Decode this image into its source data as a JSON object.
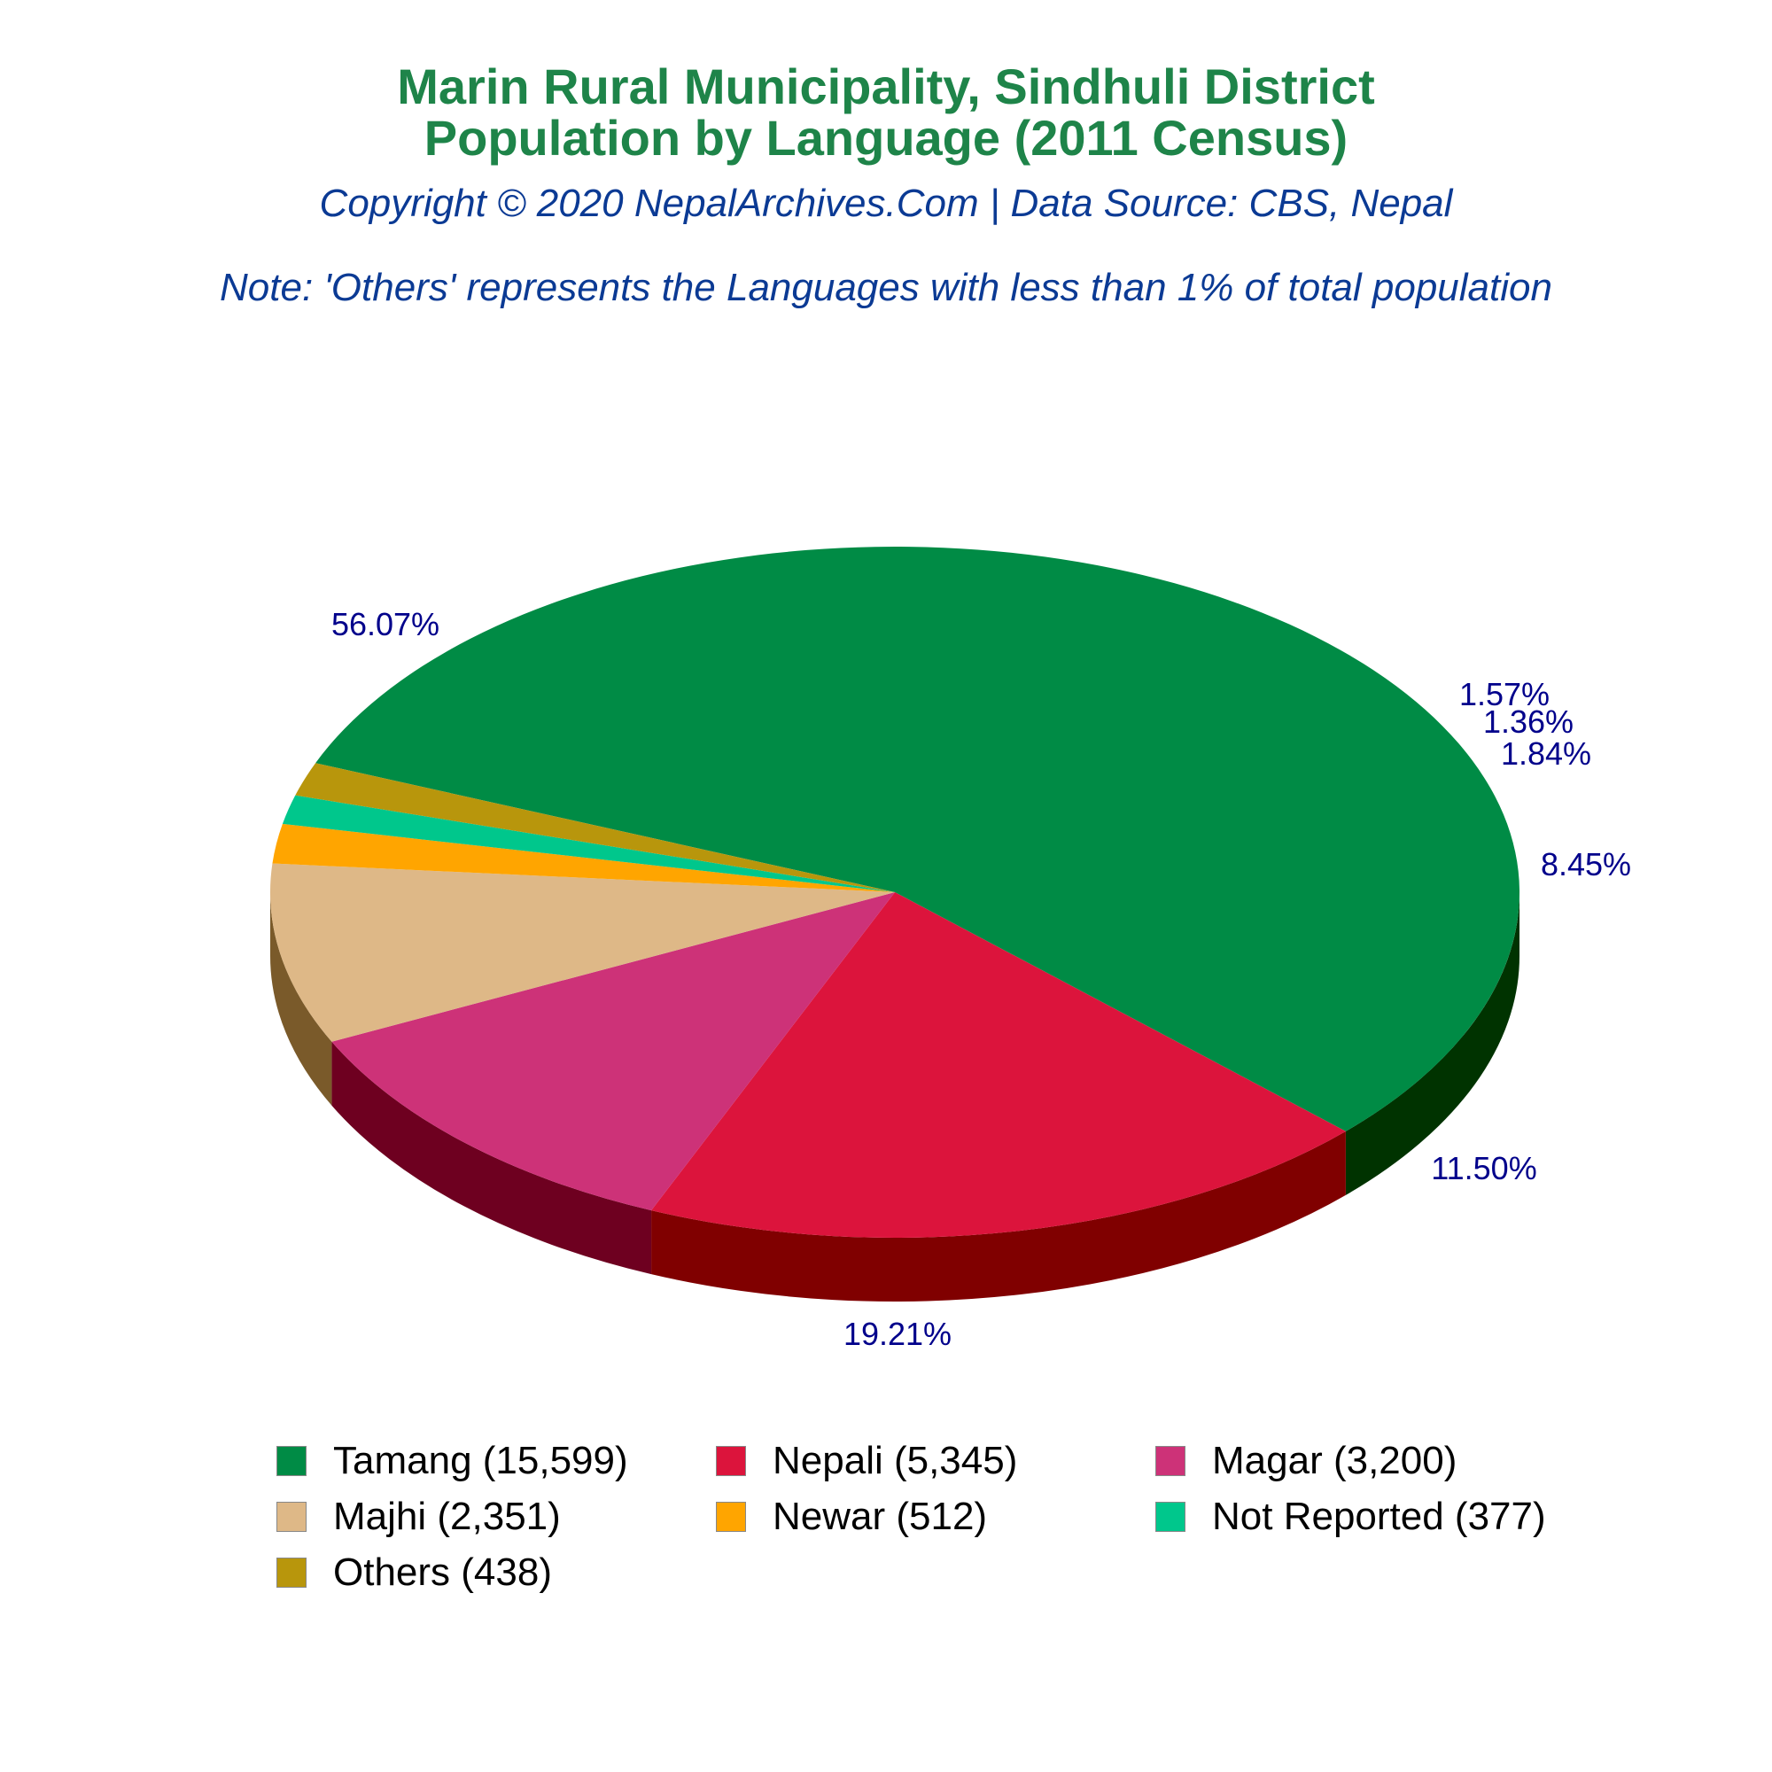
{
  "title_line1": "Marin Rural Municipality, Sindhuli District",
  "title_line2": "Population by Language (2011 Census)",
  "subtitle": "Copyright © 2020 NepalArchives.Com | Data Source: CBS, Nepal",
  "note": "Note: 'Others' represents the Languages with less than 1% of total population",
  "chart_data": {
    "type": "pie",
    "style": "3d",
    "title": "Marin Rural Municipality, Sindhuli District Population by Language (2011 Census)",
    "categories": [
      "Tamang",
      "Nepali",
      "Magar",
      "Majhi",
      "Newar",
      "Not Reported",
      "Others"
    ],
    "values": [
      15599,
      5345,
      3200,
      2351,
      512,
      377,
      438
    ],
    "percent_labels": [
      "56.07%",
      "19.21%",
      "11.50%",
      "8.45%",
      "1.84%",
      "1.36%",
      "1.57%"
    ],
    "legend_labels": [
      "Tamang (15,599)",
      "Nepali (5,345)",
      "Magar (3,200)",
      "Majhi (2,351)",
      "Newar (512)",
      "Not Reported (377)",
      "Others (438)"
    ],
    "colors": [
      "#008b45",
      "#dc143c",
      "#cd3278",
      "#deb887",
      "#ffa500",
      "#00c78c",
      "#b8960c"
    ],
    "side_colors": [
      "#003300",
      "#800000",
      "#6e0020",
      "#7a5a2a",
      "#8a5a00",
      "#006644",
      "#5c4a06"
    ],
    "label_color": "#00008b",
    "legend_position": "bottom"
  }
}
